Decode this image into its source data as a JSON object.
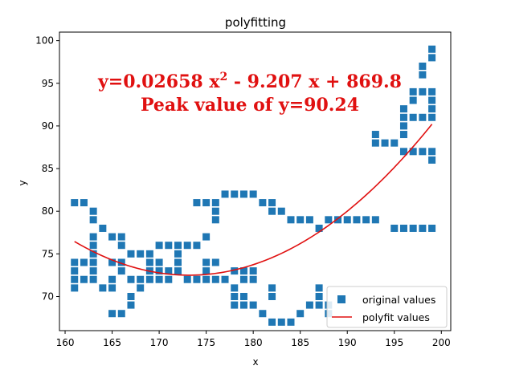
{
  "chart_data": {
    "type": "scatter",
    "title": "polyfitting",
    "xlabel": "x",
    "ylabel": "y",
    "xlim": [
      159.4,
      201
    ],
    "ylim": [
      66,
      101
    ],
    "xticks": [
      160,
      165,
      170,
      175,
      180,
      185,
      190,
      195,
      200
    ],
    "yticks": [
      70,
      75,
      80,
      85,
      90,
      95,
      100
    ],
    "grid": false,
    "legend_position": "bottom-right",
    "colors": {
      "points": "#1f77b4",
      "fit_line": "#e01010",
      "annotation": "#e01010"
    },
    "annotations": {
      "equation_prefix": "y=0.02658 x",
      "equation_superscript": "2",
      "equation_suffix": " - 9.207 x + 869.8",
      "peak": "Peak value of y=90.24"
    },
    "fit": {
      "coefficients": [
        0.02658,
        -9.207,
        869.8
      ],
      "x_range": [
        161,
        199
      ]
    },
    "series": [
      {
        "name": "original values",
        "marker": "square",
        "points": [
          [
            161,
            81
          ],
          [
            162,
            81
          ],
          [
            163,
            80
          ],
          [
            163,
            79
          ],
          [
            164,
            78
          ],
          [
            165,
            77
          ],
          [
            166,
            77
          ],
          [
            166,
            76
          ],
          [
            165,
            74
          ],
          [
            166,
            74
          ],
          [
            161,
            74
          ],
          [
            161,
            73
          ],
          [
            161,
            72
          ],
          [
            161,
            71
          ],
          [
            162,
            74
          ],
          [
            162,
            72
          ],
          [
            163,
            77
          ],
          [
            163,
            76
          ],
          [
            163,
            75
          ],
          [
            163,
            74
          ],
          [
            163,
            73
          ],
          [
            163,
            72
          ],
          [
            164,
            71
          ],
          [
            165,
            72
          ],
          [
            165,
            71
          ],
          [
            165,
            68
          ],
          [
            166,
            68
          ],
          [
            166,
            73
          ],
          [
            167,
            75
          ],
          [
            167,
            72
          ],
          [
            167,
            70
          ],
          [
            167,
            69
          ],
          [
            168,
            75
          ],
          [
            168,
            72
          ],
          [
            168,
            71
          ],
          [
            169,
            75
          ],
          [
            169,
            74
          ],
          [
            169,
            73
          ],
          [
            169,
            72
          ],
          [
            170,
            76
          ],
          [
            170,
            74
          ],
          [
            170,
            73
          ],
          [
            170,
            72
          ],
          [
            171,
            76
          ],
          [
            171,
            73
          ],
          [
            171,
            72
          ],
          [
            172,
            76
          ],
          [
            172,
            75
          ],
          [
            172,
            74
          ],
          [
            172,
            73
          ],
          [
            173,
            76
          ],
          [
            173,
            72
          ],
          [
            174,
            81
          ],
          [
            174,
            76
          ],
          [
            174,
            72
          ],
          [
            175,
            81
          ],
          [
            175,
            77
          ],
          [
            175,
            74
          ],
          [
            175,
            73
          ],
          [
            175,
            72
          ],
          [
            176,
            81
          ],
          [
            176,
            80
          ],
          [
            176,
            79
          ],
          [
            176,
            74
          ],
          [
            176,
            72
          ],
          [
            177,
            82
          ],
          [
            177,
            72
          ],
          [
            178,
            82
          ],
          [
            178,
            73
          ],
          [
            178,
            71
          ],
          [
            178,
            70
          ],
          [
            178,
            69
          ],
          [
            179,
            82
          ],
          [
            179,
            73
          ],
          [
            179,
            72
          ],
          [
            179,
            70
          ],
          [
            179,
            69
          ],
          [
            180,
            82
          ],
          [
            180,
            73
          ],
          [
            180,
            72
          ],
          [
            180,
            69
          ],
          [
            181,
            81
          ],
          [
            181,
            68
          ],
          [
            182,
            81
          ],
          [
            182,
            80
          ],
          [
            182,
            71
          ],
          [
            182,
            70
          ],
          [
            182,
            67
          ],
          [
            183,
            80
          ],
          [
            183,
            67
          ],
          [
            184,
            79
          ],
          [
            184,
            67
          ],
          [
            185,
            79
          ],
          [
            185,
            68
          ],
          [
            186,
            79
          ],
          [
            186,
            69
          ],
          [
            187,
            78
          ],
          [
            187,
            71
          ],
          [
            187,
            70
          ],
          [
            187,
            69
          ],
          [
            188,
            79
          ],
          [
            188,
            69
          ],
          [
            188,
            68
          ],
          [
            189,
            79
          ],
          [
            190,
            79
          ],
          [
            191,
            79
          ],
          [
            192,
            79
          ],
          [
            193,
            89
          ],
          [
            193,
            88
          ],
          [
            193,
            79
          ],
          [
            194,
            88
          ],
          [
            195,
            88
          ],
          [
            195,
            78
          ],
          [
            196,
            92
          ],
          [
            196,
            91
          ],
          [
            196,
            90
          ],
          [
            196,
            89
          ],
          [
            196,
            87
          ],
          [
            196,
            78
          ],
          [
            197,
            94
          ],
          [
            197,
            93
          ],
          [
            197,
            91
          ],
          [
            197,
            87
          ],
          [
            197,
            78
          ],
          [
            198,
            97
          ],
          [
            198,
            96
          ],
          [
            198,
            94
          ],
          [
            198,
            91
          ],
          [
            198,
            87
          ],
          [
            198,
            78
          ],
          [
            199,
            99
          ],
          [
            199,
            98
          ],
          [
            199,
            94
          ],
          [
            199,
            93
          ],
          [
            199,
            92
          ],
          [
            199,
            91
          ],
          [
            199,
            87
          ],
          [
            199,
            86
          ],
          [
            199,
            78
          ]
        ]
      },
      {
        "name": "polyfit values",
        "marker": "line"
      }
    ]
  }
}
